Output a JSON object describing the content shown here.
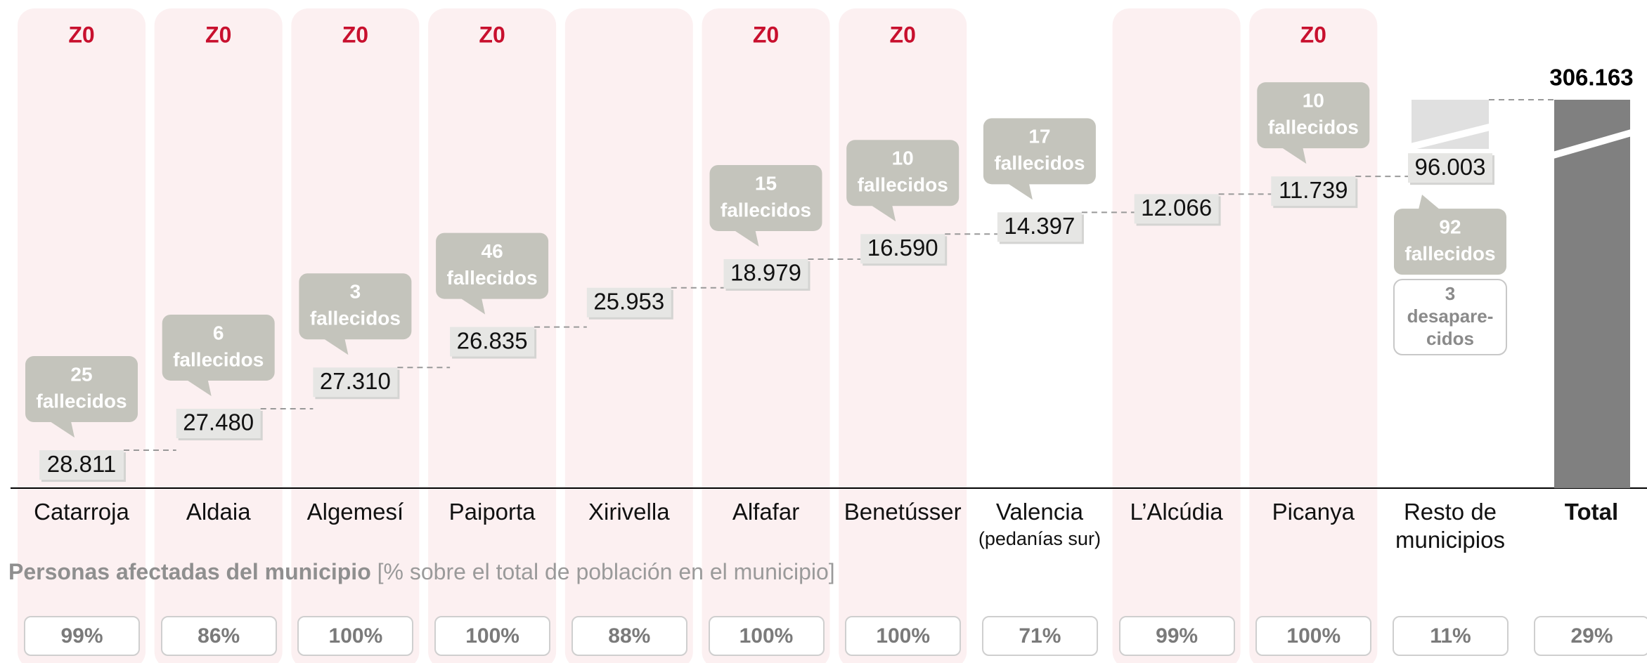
{
  "chart_data": {
    "type": "waterfall",
    "categories": [
      "Catarroja",
      "Aldaia",
      "Algemesí",
      "Paiporta",
      "Xirivella",
      "Alfafar",
      "Benetússer",
      "Valencia",
      "L’Alcúdia",
      "Picanya",
      "Resto de municipios"
    ],
    "category_sublabels": [
      null,
      null,
      null,
      null,
      null,
      null,
      null,
      "(pedanías sur)",
      null,
      null,
      null
    ],
    "values": [
      28811,
      27480,
      27310,
      26835,
      25953,
      18979,
      16590,
      14397,
      12066,
      11739,
      96003
    ],
    "value_labels": [
      "28.811",
      "27.480",
      "27.310",
      "26.835",
      "25.953",
      "18.979",
      "16.590",
      "14.397",
      "12.066",
      "11.739",
      "96.003"
    ],
    "deaths": [
      25,
      6,
      3,
      46,
      null,
      15,
      10,
      17,
      null,
      10,
      92
    ],
    "deaths_unit": "fallecidos",
    "missing": [
      null,
      null,
      null,
      null,
      null,
      null,
      null,
      null,
      null,
      null,
      3
    ],
    "missing_unit_lines": [
      "desapare-",
      "cidos"
    ],
    "zones": [
      "Z0",
      "Z0",
      "Z0",
      "Z0",
      null,
      "Z0",
      "Z0",
      null,
      null,
      "Z0",
      null
    ],
    "highlight": [
      true,
      true,
      true,
      true,
      true,
      true,
      true,
      false,
      true,
      true,
      false
    ],
    "percents": [
      99,
      86,
      100,
      100,
      88,
      100,
      100,
      71,
      99,
      100,
      11
    ],
    "percent_labels": [
      "99%",
      "86%",
      "100%",
      "100%",
      "88%",
      "100%",
      "100%",
      "71%",
      "99%",
      "100%",
      "11%"
    ],
    "total": {
      "label": "Total",
      "value": 306163,
      "value_label": "306.163",
      "percent": 29,
      "percent_label": "29%"
    },
    "footer_bold": "Personas afectadas del municipio",
    "footer_text": "[% sobre el total de población en el municipio]",
    "highlight_color": "#fcf0f1",
    "zone_color": "#c8102e",
    "callout_color": "#c4c4bc",
    "box_color": "#e6e6e4",
    "rest_color": "#e0e0e0",
    "total_color": "#808080"
  }
}
